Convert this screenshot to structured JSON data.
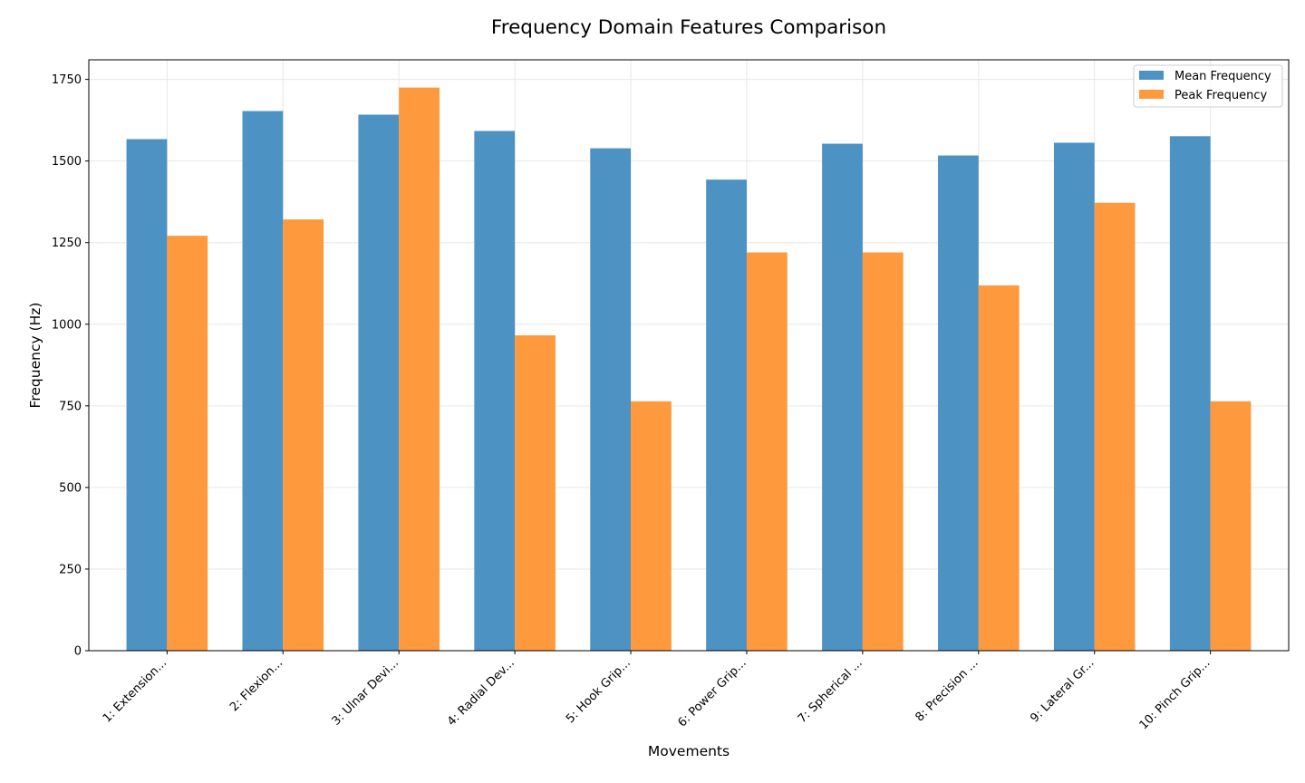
{
  "chart_data": {
    "type": "bar",
    "title": "Frequency Domain Features Comparison",
    "xlabel": "Movements",
    "ylabel": "Frequency (Hz)",
    "ylim": [
      0,
      1810
    ],
    "yticks": [
      0,
      250,
      500,
      750,
      1000,
      1250,
      1500,
      1750
    ],
    "grid": true,
    "legend_position": "top-right",
    "categories": [
      "1: Extension...",
      "2: Flexion...",
      "3: Ulnar Devi...",
      "4: Radial Dev...",
      "5: Hook Grip...",
      "6: Power Grip...",
      "7: Spherical ...",
      "8: Precision ...",
      "9: Lateral Gr...",
      "10: Pinch Grip..."
    ],
    "series": [
      {
        "name": "Mean Frequency",
        "color": "#4c92c3",
        "values": [
          1567,
          1653,
          1642,
          1592,
          1539,
          1443,
          1553,
          1517,
          1556,
          1576
        ]
      },
      {
        "name": "Peak Frequency",
        "color": "#ff993e",
        "values": [
          1271,
          1321,
          1725,
          966,
          764,
          1220,
          1220,
          1119,
          1372,
          764
        ]
      }
    ]
  }
}
